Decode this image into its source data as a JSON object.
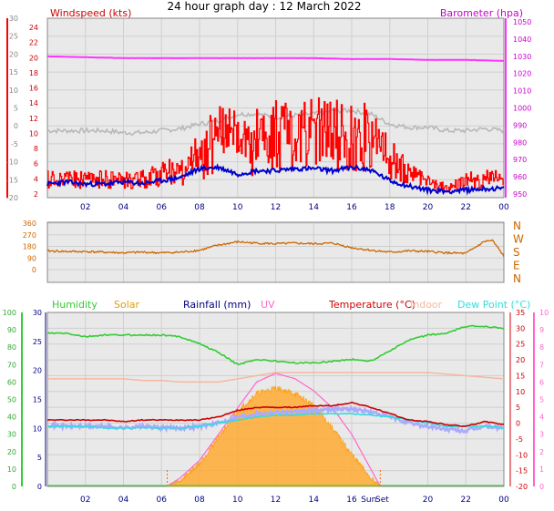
{
  "title": "24 hour graph day : 12 March 2022",
  "colors": {
    "panel_bg": "#e9e9e9",
    "grid": "#c8c8c8",
    "wind_gust": "#ff0000",
    "wind_avg": "#0000cc",
    "wind_temp_grey": "#b8b8b8",
    "barometer": "#ff33ff",
    "direction": "#cc6600",
    "humidity": "#33cc33",
    "solar": "#ffaa33",
    "rain": "#000080",
    "uv": "#ff66cc",
    "temperature": "#cc0000",
    "indoor": "#f5b8a0",
    "dewpoint": "#33dddd",
    "feels": "#aaaaff"
  },
  "chart_data": [
    {
      "type": "line",
      "name": "wind-barometer",
      "left_axis_label": "Windspeed (kts)",
      "right_axis_label": "Barometer (hpa)",
      "x_ticks": [
        "02",
        "04",
        "06",
        "08",
        "10",
        "12",
        "14",
        "16",
        "18",
        "20",
        "22",
        "00"
      ],
      "left_ticks_outer": [
        "30",
        "25",
        "20",
        "15",
        "10",
        "5",
        "0",
        "-5",
        "-10",
        "-15",
        "-20"
      ],
      "left_ticks_inner": [
        "24",
        "22",
        "20",
        "18",
        "16",
        "14",
        "12",
        "10",
        "8",
        "6",
        "4",
        "2"
      ],
      "right_ticks": [
        "1050",
        "1040",
        "1030",
        "1020",
        "1010",
        "1000",
        "990",
        "980",
        "970",
        "960",
        "950"
      ],
      "ylim_kts": [
        0,
        25
      ],
      "ylim_hpa": [
        955,
        1050
      ],
      "series": [
        {
          "x": [
            0,
            1,
            2,
            3,
            4,
            5,
            6,
            7,
            8,
            9,
            10,
            11,
            12,
            13,
            14,
            15,
            16,
            17,
            18,
            19,
            20,
            21,
            22,
            23,
            24
          ],
          "values": [
            3,
            3,
            3,
            3,
            3,
            3,
            4,
            5,
            8,
            12,
            10,
            11,
            12,
            11,
            13,
            12,
            12,
            11,
            7,
            4,
            3,
            1,
            3,
            3,
            3
          ]
        },
        {
          "x": [
            0,
            1,
            2,
            3,
            4,
            5,
            6,
            7,
            8,
            9,
            10,
            11,
            12,
            13,
            14,
            15,
            16,
            17,
            18,
            19,
            20,
            21,
            22,
            23,
            24
          ],
          "values": [
            1.5,
            1.8,
            1.5,
            1.5,
            1.8,
            1.6,
            2.0,
            2.5,
            3.8,
            4.0,
            3.0,
            3.5,
            3.5,
            3.8,
            3.8,
            3.5,
            4.0,
            3.6,
            2.0,
            1.2,
            0.6,
            0.4,
            0.6,
            0.8,
            0.8
          ]
        },
        {
          "x": [
            0,
            1,
            2,
            3,
            4,
            5,
            6,
            7,
            8,
            9,
            10,
            11,
            12,
            13,
            14,
            15,
            16,
            17,
            18,
            19,
            20,
            21,
            22,
            23,
            24
          ],
          "values": [
            9.5,
            9.5,
            9.5,
            9.5,
            9.2,
            9.2,
            9.5,
            9.8,
            10.5,
            11,
            12,
            12,
            11.5,
            11.8,
            12,
            12.5,
            12.5,
            12,
            10.5,
            10,
            10,
            9.5,
            9.5,
            9.8,
            9.5
          ]
        },
        {
          "x": [
            0,
            2,
            4,
            6,
            8,
            10,
            12,
            14,
            16,
            18,
            20,
            22,
            24
          ],
          "values": [
            1031,
            1030.5,
            1030,
            1030,
            1030,
            1030,
            1030,
            1030,
            1029.5,
            1029.5,
            1029,
            1029,
            1028.5
          ]
        }
      ]
    },
    {
      "type": "line",
      "name": "wind-direction",
      "left_ticks": [
        "360",
        "270",
        "180",
        "90",
        "0"
      ],
      "right_labels": [
        "N",
        "W",
        "S",
        "E",
        "N"
      ],
      "ylim": [
        0,
        360
      ],
      "series": [
        {
          "x": [
            0,
            1,
            2,
            3,
            4,
            5,
            6,
            7,
            8,
            9,
            10,
            11,
            12,
            13,
            14,
            15,
            16,
            17,
            18,
            19,
            20,
            21,
            22,
            23,
            23.4,
            24
          ],
          "values": [
            145,
            140,
            140,
            135,
            130,
            135,
            130,
            135,
            150,
            190,
            215,
            205,
            200,
            205,
            200,
            205,
            170,
            150,
            135,
            145,
            140,
            130,
            125,
            220,
            225,
            105
          ]
        }
      ]
    },
    {
      "type": "line",
      "name": "temperature-humidity",
      "legend": [
        "Humidity",
        "Solar",
        "Rainfall (mm)",
        "UV",
        "Temperature (°C)",
        "Indoor",
        "Dew Point (°C)"
      ],
      "x_ticks": [
        "02",
        "04",
        "06",
        "08",
        "10",
        "12",
        "14",
        "16",
        "Sun",
        "Set",
        "20",
        "22",
        "00"
      ],
      "sunrise_hour": 6.3,
      "sunset_hour": 17.5,
      "humidity_ticks": [
        "100",
        "90",
        "80",
        "70",
        "60",
        "50",
        "40",
        "30",
        "20",
        "10",
        "0"
      ],
      "rain_ticks": [
        "30",
        "25",
        "20",
        "15",
        "10",
        "5",
        "0"
      ],
      "temp_ticks_right": [
        "35",
        "30",
        "25",
        "20",
        "15",
        "10",
        "5",
        "0",
        "-5",
        "-10",
        "-15",
        "-20"
      ],
      "uv_ticks": [
        "10",
        "9",
        "8",
        "7",
        "6",
        "5",
        "4",
        "3",
        "2",
        "1",
        "0"
      ],
      "series": [
        {
          "x": [
            0,
            1,
            2,
            3,
            4,
            5,
            6,
            7,
            8,
            9,
            10,
            11,
            12,
            13,
            14,
            15,
            16,
            17,
            18,
            19,
            20,
            21,
            22,
            23,
            24
          ],
          "values": [
            88,
            88,
            86,
            87,
            87,
            87,
            87,
            86,
            82,
            77,
            70,
            73,
            72,
            71,
            71,
            72,
            73,
            72,
            78,
            84,
            87,
            88,
            92,
            92,
            91
          ]
        },
        {
          "x": [
            0,
            1,
            2,
            3,
            4,
            5,
            6,
            7,
            8,
            9,
            10,
            11,
            12,
            13,
            14,
            15,
            16,
            17,
            18,
            19,
            20,
            21,
            22,
            23,
            24
          ],
          "values": [
            9,
            9,
            9.5,
            9,
            9,
            9.5,
            9,
            9,
            8,
            8,
            8.5,
            9,
            9,
            9,
            9,
            9.5,
            9.5,
            9.5,
            9,
            9,
            8.5,
            8.5,
            8.5,
            8.5,
            9
          ]
        },
        {
          "x": [
            0,
            1,
            2,
            3,
            4,
            5,
            6,
            7,
            8,
            9,
            10,
            11,
            12,
            13,
            14,
            15,
            16,
            17,
            18,
            19,
            20,
            21,
            22,
            23,
            24
          ],
          "values": [
            14,
            14,
            14,
            14,
            14,
            13.5,
            13.5,
            13,
            13,
            13,
            14,
            15,
            16,
            16,
            16,
            16,
            16,
            16,
            16,
            16,
            16,
            15.5,
            15,
            14.5,
            14
          ]
        },
        {
          "x": [
            0,
            1,
            2,
            3,
            4,
            5,
            6,
            7,
            8,
            9,
            10,
            11,
            12,
            13,
            14,
            15,
            16,
            17,
            18,
            19,
            20,
            21,
            22,
            23,
            24
          ],
          "values": [
            0,
            0,
            0,
            0,
            0,
            0,
            0,
            0,
            0,
            0,
            0,
            0,
            0,
            0,
            0,
            0,
            0,
            0,
            0,
            0,
            0,
            0,
            0,
            0,
            0
          ]
        },
        {
          "x": [
            0,
            1,
            2,
            3,
            4,
            5,
            6,
            7,
            8,
            9,
            10,
            11,
            12,
            13,
            14,
            15,
            16,
            17,
            18,
            19,
            20,
            21,
            22,
            23,
            24
          ],
          "values": [
            1,
            1,
            1,
            1,
            0.5,
            1,
            1,
            1,
            1,
            2,
            4,
            5,
            5,
            5,
            5.5,
            5.5,
            6.5,
            5,
            3,
            1,
            0.5,
            -0.5,
            -1,
            0.5,
            -0.5
          ]
        },
        {
          "x": [
            0,
            1,
            2,
            3,
            4,
            5,
            6,
            7,
            8,
            9,
            10,
            11,
            12,
            13,
            14,
            15,
            16,
            17,
            18,
            19,
            20,
            21,
            22,
            23,
            24
          ],
          "values": [
            -0.5,
            -1,
            -1,
            -1,
            -1.5,
            -1,
            -1.5,
            -1.5,
            -1,
            0,
            2,
            3,
            3.5,
            3.5,
            4,
            4.5,
            4.5,
            3.5,
            2,
            0,
            -1,
            -2,
            -2.5,
            -1,
            -1.5
          ]
        },
        {
          "x": [
            0,
            1,
            2,
            3,
            4,
            5,
            6,
            7,
            8,
            9,
            10,
            11,
            12,
            13,
            14,
            15,
            16,
            17,
            18,
            19,
            20,
            21,
            22,
            23,
            24
          ],
          "values": [
            -1,
            -1,
            -1,
            -1.5,
            -1.5,
            -1.5,
            -1.5,
            -1.5,
            -1,
            0,
            1,
            2,
            2.5,
            2.5,
            3,
            3,
            3,
            2.5,
            2,
            1,
            0,
            -1,
            -1,
            -1,
            -1.5
          ]
        },
        {
          "x": [
            6.3,
            7,
            8,
            9,
            10,
            11,
            12,
            13,
            14,
            15,
            16,
            17,
            17.5
          ],
          "values": [
            0,
            20,
            80,
            170,
            260,
            320,
            340,
            320,
            280,
            200,
            110,
            30,
            0
          ]
        },
        {
          "x": [
            6.3,
            7,
            8,
            9,
            10,
            11,
            12,
            13,
            14,
            15,
            16,
            17,
            17.5
          ],
          "values": [
            0,
            0.5,
            1.5,
            3,
            4.5,
            6,
            6.5,
            6.2,
            5.5,
            4.5,
            3,
            1,
            0
          ]
        }
      ]
    }
  ]
}
